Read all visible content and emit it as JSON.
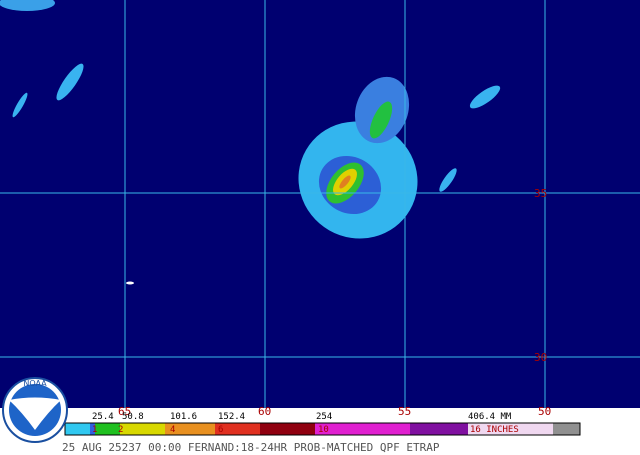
{
  "map": {
    "lat_labels": [
      "35",
      "30"
    ],
    "lon_labels": [
      "65",
      "60",
      "55",
      "50"
    ],
    "legend": {
      "mm_labels": [
        "25.4",
        "50.8",
        "101.6",
        "152.4",
        "254",
        "406.4 MM"
      ],
      "inch_labels": [
        "1",
        "2",
        "4",
        "6",
        "10",
        "16 INCHES"
      ]
    },
    "footer": "25 AUG 25237 00:00 FERNAND:18-24HR PROB-MATCHED QPF ETRAP",
    "logo": "NOAA"
  }
}
